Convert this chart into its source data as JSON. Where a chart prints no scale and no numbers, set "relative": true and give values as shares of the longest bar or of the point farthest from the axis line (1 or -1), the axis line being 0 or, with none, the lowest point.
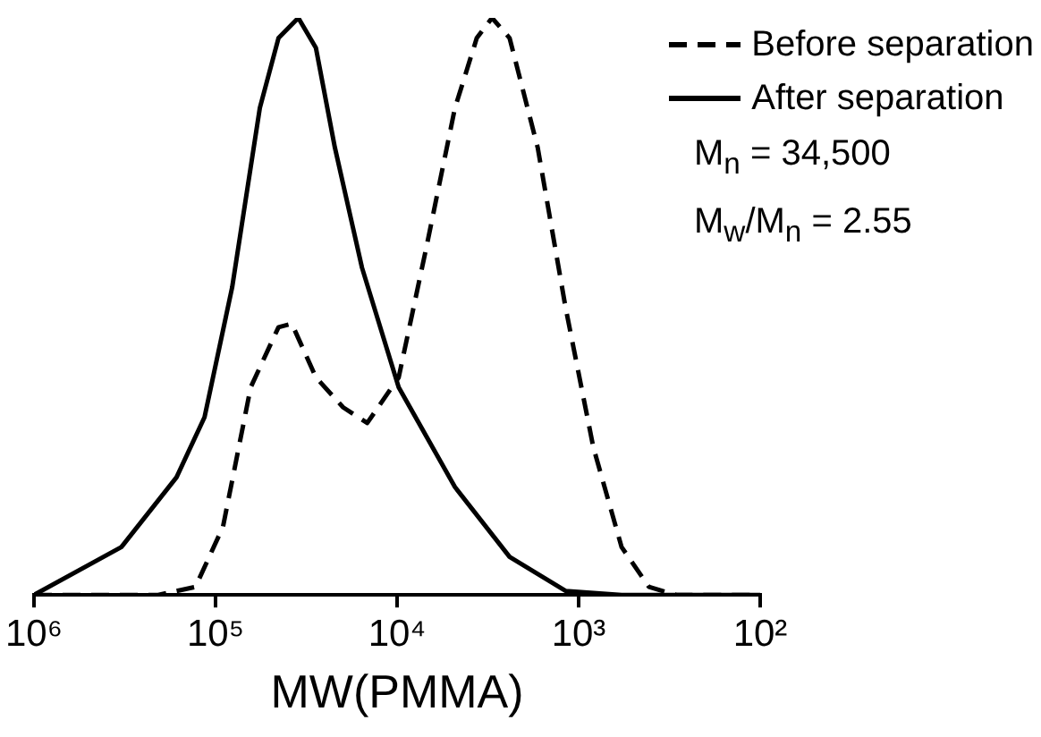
{
  "chart_data": {
    "type": "line",
    "xlabel": "MW(PMMA)",
    "log": "x",
    "relative": true,
    "legend": "top right",
    "grid": false,
    "marker": "none",
    "xlim": [
      1000000,
      100
    ],
    "xticks": [
      {
        "value": 1000000,
        "label": "10⁶"
      },
      {
        "value": 100000,
        "label": "10⁵"
      },
      {
        "value": 10000,
        "label": "10⁴"
      },
      {
        "value": 1000,
        "label": "10³"
      },
      {
        "value": 100,
        "label": "10²"
      }
    ],
    "series": [
      {
        "name": "Before separation",
        "color": "#000000",
        "line_style": "dashed",
        "x": [
          1000000,
          207000,
          129000,
          91000,
          64000,
          45000,
          38000,
          28000,
          19800,
          14600,
          9800,
          6900,
          4800,
          3640,
          3000,
          2400,
          1680,
          1180,
          830,
          580,
          410,
          290,
          100
        ],
        "values": [
          0,
          0,
          0.014,
          0.118,
          0.36,
          0.464,
          0.47,
          0.377,
          0.325,
          0.298,
          0.377,
          0.602,
          0.844,
          0.965,
          1.0,
          0.965,
          0.775,
          0.498,
          0.256,
          0.083,
          0.014,
          0,
          0
        ]
      },
      {
        "name": "After separation",
        "color": "#000000",
        "line_style": "solid",
        "x": [
          1000000,
          330000,
          164000,
          115000,
          81000,
          57000,
          45000,
          35000,
          28000,
          22000,
          15600,
          9800,
          4800,
          2400,
          1180,
          580,
          100
        ],
        "values": [
          0,
          0.083,
          0.204,
          0.308,
          0.533,
          0.844,
          0.965,
          1.0,
          0.948,
          0.775,
          0.567,
          0.36,
          0.187,
          0.066,
          0.007,
          0,
          0
        ]
      }
    ],
    "annotations": [
      "M$_{n}$ = 34,500",
      "M$_{w}$/M$_{n}$ = 2.55"
    ]
  }
}
